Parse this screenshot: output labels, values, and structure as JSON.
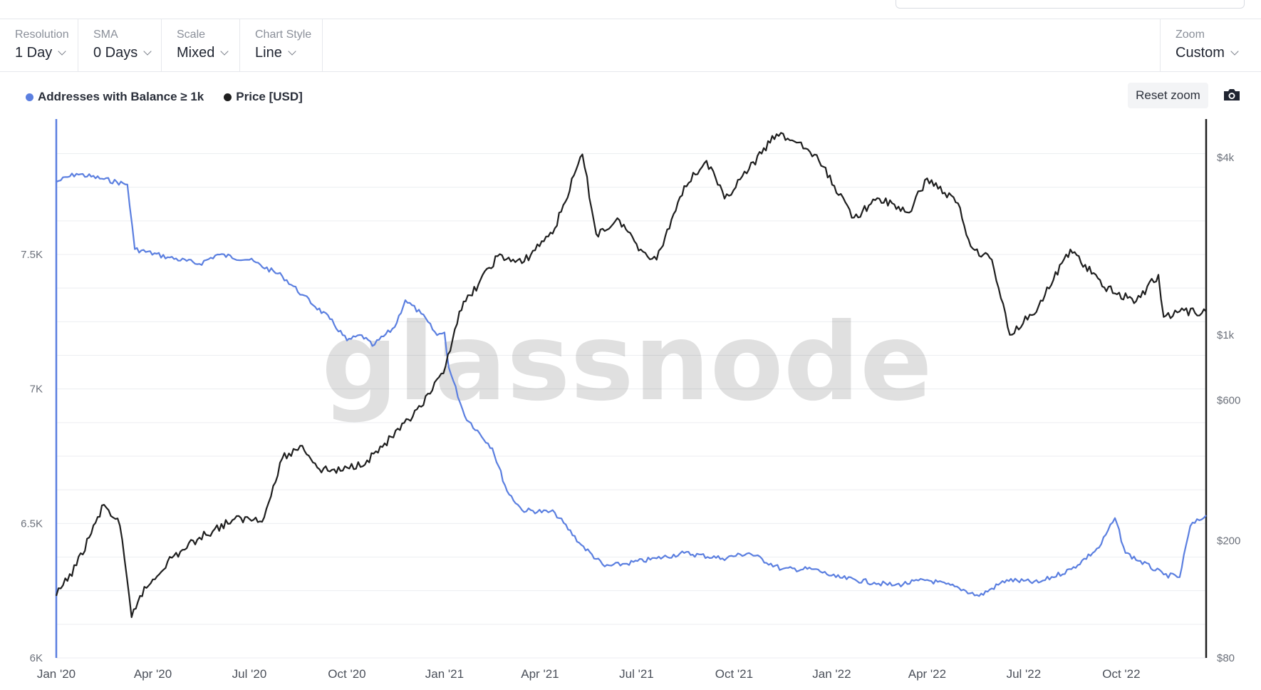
{
  "toolbar": {
    "resolution": {
      "label": "Resolution",
      "value": "1 Day"
    },
    "sma": {
      "label": "SMA",
      "value": "0 Days"
    },
    "scale": {
      "label": "Scale",
      "value": "Mixed"
    },
    "chart_style": {
      "label": "Chart Style",
      "value": "Line"
    },
    "zoom": {
      "label": "Zoom",
      "value": "Custom"
    }
  },
  "reset_zoom_label": "Reset zoom",
  "camera_icon": "camera-icon",
  "colors": {
    "addresses": "#5b7fe0",
    "price": "#1f1f1f",
    "grid": "#eceef1"
  },
  "legend": [
    {
      "name": "Addresses with Balance ≥ 1k",
      "color": "#5b7fe0"
    },
    {
      "name": "Price [USD]",
      "color": "#1f1f1f"
    }
  ],
  "watermark": "glassnode",
  "chart_data": {
    "type": "line",
    "grid": true,
    "legend_position": "top-left",
    "x_ticks": [
      "Jan '20",
      "Apr '20",
      "Jul '20",
      "Oct '20",
      "Jan '21",
      "Apr '21",
      "Jul '21",
      "Oct '21",
      "Jan '22",
      "Apr '22",
      "Jul '22",
      "Oct '22"
    ],
    "y_left": {
      "label": "",
      "ticks": [
        "6K",
        "6.5K",
        "7K",
        "7.5K"
      ],
      "tick_values": [
        6000,
        6500,
        7000,
        7500
      ],
      "range": [
        6000,
        8000
      ]
    },
    "y_right": {
      "label": "",
      "scale": "log",
      "ticks": [
        "$80",
        "$200",
        "$600",
        "$1k",
        "$4k"
      ],
      "tick_values": [
        80,
        200,
        600,
        1000,
        4000
      ],
      "range": [
        80,
        5500
      ]
    },
    "x_range": [
      "2020-01-01",
      "2022-12-20"
    ],
    "series": [
      {
        "name": "Addresses with Balance ≥ 1k",
        "axis": "left",
        "color": "#5b7fe0",
        "points": [
          [
            "2020-01-01",
            7770
          ],
          [
            "2020-01-20",
            7800
          ],
          [
            "2020-02-15",
            7780
          ],
          [
            "2020-03-08",
            7760
          ],
          [
            "2020-03-15",
            7520
          ],
          [
            "2020-04-15",
            7490
          ],
          [
            "2020-05-15",
            7465
          ],
          [
            "2020-06-01",
            7500
          ],
          [
            "2020-07-01",
            7480
          ],
          [
            "2020-08-01",
            7420
          ],
          [
            "2020-08-20",
            7350
          ],
          [
            "2020-09-15",
            7260
          ],
          [
            "2020-10-01",
            7180
          ],
          [
            "2020-10-15",
            7200
          ],
          [
            "2020-10-25",
            7160
          ],
          [
            "2020-11-15",
            7230
          ],
          [
            "2020-11-25",
            7330
          ],
          [
            "2020-12-10",
            7280
          ],
          [
            "2020-12-25",
            7200
          ],
          [
            "2021-01-01",
            7210
          ],
          [
            "2021-01-05",
            7080
          ],
          [
            "2021-01-20",
            6900
          ],
          [
            "2021-02-15",
            6780
          ],
          [
            "2021-03-01",
            6620
          ],
          [
            "2021-03-15",
            6550
          ],
          [
            "2021-04-15",
            6540
          ],
          [
            "2021-05-10",
            6420
          ],
          [
            "2021-06-01",
            6340
          ],
          [
            "2021-06-20",
            6350
          ],
          [
            "2021-07-20",
            6370
          ],
          [
            "2021-08-15",
            6390
          ],
          [
            "2021-09-20",
            6370
          ],
          [
            "2021-10-15",
            6390
          ],
          [
            "2021-11-15",
            6330
          ],
          [
            "2021-12-15",
            6330
          ],
          [
            "2022-01-05",
            6300
          ],
          [
            "2022-02-10",
            6280
          ],
          [
            "2022-03-01",
            6270
          ],
          [
            "2022-04-01",
            6290
          ],
          [
            "2022-05-01",
            6260
          ],
          [
            "2022-05-20",
            6230
          ],
          [
            "2022-06-15",
            6290
          ],
          [
            "2022-07-15",
            6280
          ],
          [
            "2022-08-15",
            6330
          ],
          [
            "2022-09-10",
            6410
          ],
          [
            "2022-09-25",
            6520
          ],
          [
            "2022-10-05",
            6390
          ],
          [
            "2022-11-10",
            6310
          ],
          [
            "2022-11-25",
            6300
          ],
          [
            "2022-12-05",
            6490
          ],
          [
            "2022-12-20",
            6530
          ]
        ]
      },
      {
        "name": "Price [USD]",
        "axis": "right",
        "color": "#1f1f1f",
        "points": [
          [
            "2020-01-01",
            130
          ],
          [
            "2020-01-20",
            165
          ],
          [
            "2020-02-15",
            265
          ],
          [
            "2020-03-01",
            225
          ],
          [
            "2020-03-12",
            110
          ],
          [
            "2020-03-20",
            130
          ],
          [
            "2020-04-15",
            170
          ],
          [
            "2020-05-15",
            205
          ],
          [
            "2020-06-15",
            235
          ],
          [
            "2020-07-15",
            240
          ],
          [
            "2020-08-01",
            380
          ],
          [
            "2020-08-20",
            420
          ],
          [
            "2020-09-05",
            350
          ],
          [
            "2020-09-25",
            345
          ],
          [
            "2020-10-20",
            375
          ],
          [
            "2020-11-20",
            475
          ],
          [
            "2020-12-10",
            570
          ],
          [
            "2020-12-31",
            740
          ],
          [
            "2021-01-15",
            1200
          ],
          [
            "2021-02-20",
            1850
          ],
          [
            "2021-03-15",
            1750
          ],
          [
            "2021-04-15",
            2300
          ],
          [
            "2021-05-11",
            4100
          ],
          [
            "2021-05-24",
            2200
          ],
          [
            "2021-06-15",
            2450
          ],
          [
            "2021-07-05",
            1950
          ],
          [
            "2021-07-20",
            1800
          ],
          [
            "2021-08-15",
            3200
          ],
          [
            "2021-09-05",
            3900
          ],
          [
            "2021-09-22",
            2900
          ],
          [
            "2021-10-15",
            3650
          ],
          [
            "2021-11-10",
            4800
          ],
          [
            "2021-12-01",
            4500
          ],
          [
            "2021-12-20",
            3900
          ],
          [
            "2022-01-22",
            2500
          ],
          [
            "2022-02-15",
            2900
          ],
          [
            "2022-03-15",
            2600
          ],
          [
            "2022-04-01",
            3400
          ],
          [
            "2022-04-30",
            2800
          ],
          [
            "2022-05-12",
            2000
          ],
          [
            "2022-06-01",
            1800
          ],
          [
            "2022-06-18",
            1000
          ],
          [
            "2022-07-15",
            1250
          ],
          [
            "2022-08-14",
            1950
          ],
          [
            "2022-09-15",
            1450
          ],
          [
            "2022-10-15",
            1300
          ],
          [
            "2022-11-05",
            1600
          ],
          [
            "2022-11-10",
            1150
          ],
          [
            "2022-11-25",
            1200
          ],
          [
            "2022-12-20",
            1200
          ]
        ]
      }
    ]
  }
}
